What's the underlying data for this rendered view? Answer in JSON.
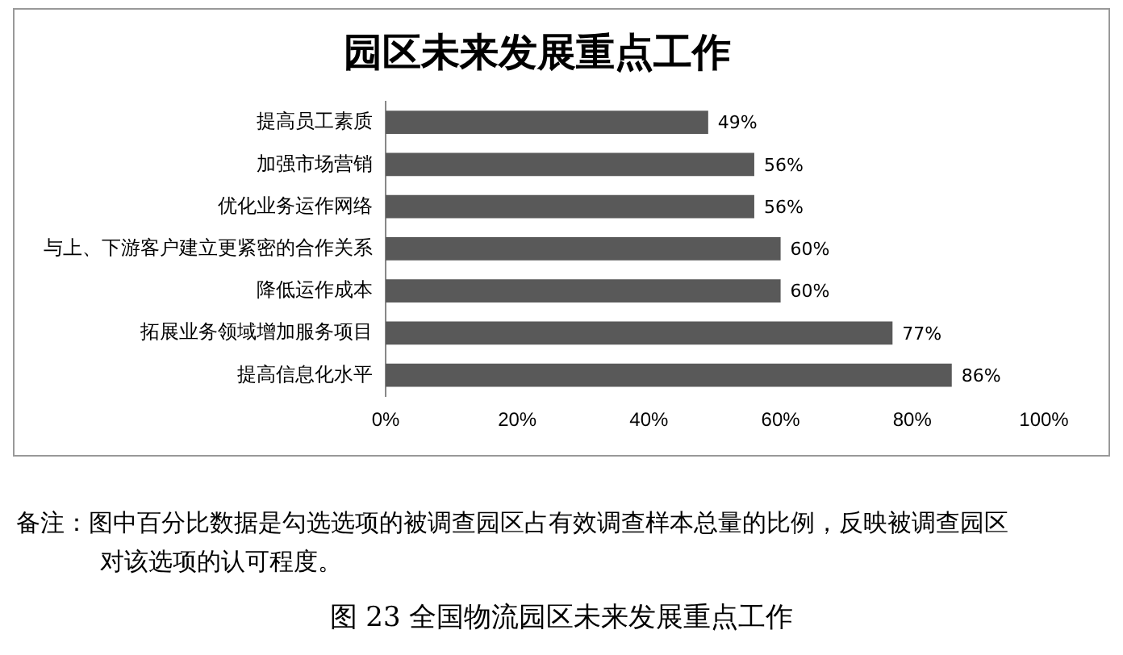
{
  "chart_data": {
    "type": "bar",
    "orientation": "horizontal",
    "title": "园区未来发展重点工作",
    "categories": [
      "提高员工素质",
      "加强市场营销",
      "优化业务运作网络",
      "与上、下游客户建立更紧密的合作关系",
      "降低运作成本",
      "拓展业务领域增加服务项目",
      "提高信息化水平"
    ],
    "values": [
      49,
      56,
      56,
      60,
      60,
      77,
      86
    ],
    "value_labels": [
      "49%",
      "56%",
      "56%",
      "60%",
      "60%",
      "77%",
      "86%"
    ],
    "color": "#595959",
    "xlim": [
      0,
      100
    ],
    "xticks": [
      {
        "value": 0,
        "label": "0%"
      },
      {
        "value": 20,
        "label": "20%"
      },
      {
        "value": 40,
        "label": "40%"
      },
      {
        "value": 60,
        "label": "60%"
      },
      {
        "value": 80,
        "label": "80%"
      },
      {
        "value": 100,
        "label": "100%"
      }
    ],
    "grid": false,
    "legend": false,
    "annotations": [
      "备注：图中百分比数据是勾选选项的被调查园区占有效调查样本总量的比例，反映被调查园区对该选项的认可程度。",
      "图 23  全国物流园区未来发展重点工作"
    ]
  }
}
